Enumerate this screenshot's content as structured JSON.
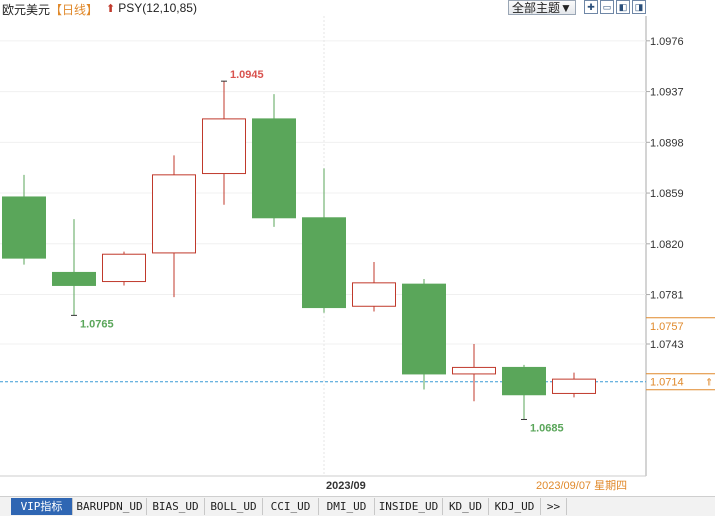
{
  "header": {
    "symbol": "欧元美元",
    "period": "【日线】",
    "indicator": "PSY(12,10,85)",
    "theme_button": "全部主题▼",
    "tool_icons": [
      "zoom-in-icon",
      "zoom-out-icon",
      "scroll-left-icon",
      "scroll-right-icon"
    ]
  },
  "chart_data": {
    "type": "candlestick",
    "title": "",
    "xlabel": "",
    "ylabel": "",
    "y_ticks": [
      "1.0976",
      "1.0937",
      "1.0898",
      "1.0859",
      "1.0820",
      "1.0781",
      "1.0743"
    ],
    "ylim": [
      1.066,
      1.0992
    ],
    "candles": [
      {
        "open": 1.0856,
        "high": 1.0873,
        "low": 1.0804,
        "close": 1.0809
      },
      {
        "open": 1.0798,
        "high": 1.0839,
        "low": 1.0765,
        "close": 1.0788
      },
      {
        "open": 1.0791,
        "high": 1.0814,
        "low": 1.0788,
        "close": 1.0812
      },
      {
        "open": 1.0813,
        "high": 1.0888,
        "low": 1.0779,
        "close": 1.0873
      },
      {
        "open": 1.0874,
        "high": 1.0945,
        "low": 1.085,
        "close": 1.0916
      },
      {
        "open": 1.0916,
        "high": 1.0935,
        "low": 1.0833,
        "close": 1.084
      },
      {
        "open": 1.084,
        "high": 1.0878,
        "low": 1.0767,
        "close": 1.0771
      },
      {
        "open": 1.0772,
        "high": 1.0806,
        "low": 1.0768,
        "close": 1.079
      },
      {
        "open": 1.0789,
        "high": 1.0793,
        "low": 1.0708,
        "close": 1.072
      },
      {
        "open": 1.072,
        "high": 1.0743,
        "low": 1.0699,
        "close": 1.0725
      },
      {
        "open": 1.0725,
        "high": 1.0727,
        "low": 1.0685,
        "close": 1.0704
      },
      {
        "open": 1.0705,
        "high": 1.0721,
        "low": 1.0702,
        "close": 1.0716
      }
    ],
    "colors": {
      "up": "#c0392b",
      "down": "#5aa65a",
      "current_line": "#3a9bd5",
      "axis": "#aaaaaa"
    },
    "annotations": [
      {
        "candle": 4,
        "value": 1.0945,
        "text": "1.0945",
        "color": "#d9534f"
      },
      {
        "candle": 1,
        "value": 1.0765,
        "text": "1.0765",
        "color": "#5aa65a"
      },
      {
        "candle": 10,
        "value": 1.0685,
        "text": "1.0685",
        "color": "#5aa65a"
      }
    ],
    "price_tags": [
      {
        "value": 1.0757,
        "text": "1.0757",
        "color": "#e0892b"
      },
      {
        "value": 1.0714,
        "text": "1.0714",
        "color": "#e0892b"
      }
    ],
    "current_price": 1.0714,
    "x_label": {
      "candle": 6,
      "text": "2023/09"
    },
    "date_label": "2023/09/07 星期四",
    "grid": true
  },
  "tabs": [
    "VIP指标",
    "BARUPDN_UD",
    "BIAS_UD",
    "BOLL_UD",
    "CCI_UD",
    "DMI_UD",
    "INSIDE_UD",
    "KD_UD",
    "KDJ_UD",
    ">>"
  ]
}
